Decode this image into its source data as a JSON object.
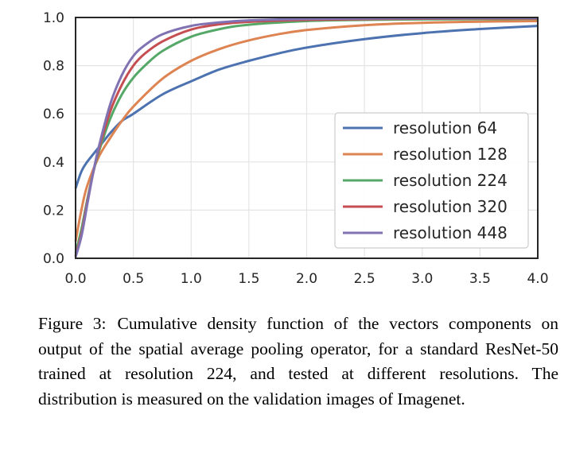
{
  "chart_data": {
    "type": "line",
    "title": "",
    "xlabel": "",
    "ylabel": "",
    "xlim": [
      0.0,
      4.0
    ],
    "ylim": [
      0.0,
      1.0
    ],
    "grid": true,
    "legend_position": "center-right",
    "x_ticks": [
      "0.0",
      "0.5",
      "1.0",
      "1.5",
      "2.0",
      "2.5",
      "3.0",
      "3.5",
      "4.0"
    ],
    "y_ticks": [
      "0.0",
      "0.2",
      "0.4",
      "0.6",
      "0.8",
      "1.0"
    ],
    "series": [
      {
        "name": "resolution 64",
        "color": "#4c72b0",
        "x": [
          0,
          0.05,
          0.1,
          0.2,
          0.3,
          0.4,
          0.5,
          0.75,
          1.0,
          1.25,
          1.5,
          1.75,
          2.0,
          2.5,
          3.0,
          3.5,
          4.0
        ],
        "y": [
          0.29,
          0.36,
          0.4,
          0.46,
          0.52,
          0.57,
          0.6,
          0.68,
          0.735,
          0.785,
          0.82,
          0.85,
          0.875,
          0.91,
          0.935,
          0.952,
          0.965
        ]
      },
      {
        "name": "resolution 128",
        "color": "#dd8452",
        "x": [
          0,
          0.05,
          0.1,
          0.2,
          0.3,
          0.4,
          0.5,
          0.75,
          1.0,
          1.25,
          1.5,
          1.75,
          2.0,
          2.5,
          3.0,
          3.5,
          4.0
        ],
        "y": [
          0.07,
          0.2,
          0.3,
          0.42,
          0.5,
          0.57,
          0.63,
          0.745,
          0.82,
          0.87,
          0.905,
          0.93,
          0.948,
          0.968,
          0.978,
          0.983,
          0.985
        ]
      },
      {
        "name": "resolution 224",
        "color": "#55a868",
        "x": [
          0,
          0.05,
          0.1,
          0.15,
          0.2,
          0.3,
          0.4,
          0.5,
          0.6,
          0.75,
          1.0,
          1.25,
          1.5,
          2.0,
          2.5,
          3.0,
          4.0
        ],
        "y": [
          0.02,
          0.12,
          0.24,
          0.35,
          0.44,
          0.58,
          0.68,
          0.75,
          0.8,
          0.86,
          0.92,
          0.952,
          0.97,
          0.985,
          0.99,
          0.992,
          0.994
        ]
      },
      {
        "name": "resolution 320",
        "color": "#c44e52",
        "x": [
          0,
          0.05,
          0.1,
          0.15,
          0.2,
          0.3,
          0.4,
          0.5,
          0.6,
          0.75,
          1.0,
          1.25,
          1.5,
          2.0,
          3.0,
          4.0
        ],
        "y": [
          0.01,
          0.1,
          0.23,
          0.35,
          0.45,
          0.61,
          0.72,
          0.8,
          0.85,
          0.9,
          0.95,
          0.972,
          0.982,
          0.99,
          0.995,
          0.996
        ]
      },
      {
        "name": "resolution 448",
        "color": "#8172b3",
        "x": [
          0,
          0.05,
          0.1,
          0.15,
          0.2,
          0.3,
          0.4,
          0.5,
          0.6,
          0.75,
          1.0,
          1.25,
          1.5,
          2.0,
          3.0,
          4.0
        ],
        "y": [
          0.005,
          0.09,
          0.22,
          0.35,
          0.46,
          0.64,
          0.76,
          0.84,
          0.885,
          0.93,
          0.965,
          0.98,
          0.988,
          0.994,
          0.997,
          0.998
        ]
      }
    ]
  },
  "caption": {
    "label": "Figure 3:",
    "text": "Cumulative density function of the vectors components on output of the spatial average pooling operator, for a standard ResNet-50 trained at resolution 224, and tested at different resolutions. The distribution is measured on the validation images of Imagenet."
  }
}
